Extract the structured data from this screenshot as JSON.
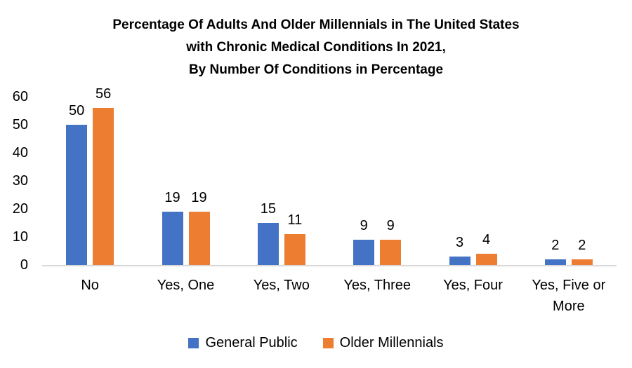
{
  "chart_data": {
    "type": "bar",
    "title": "Percentage Of Adults And Older Millennials in The United States\nwith Chronic Medical Conditions In 2021,\nBy Number Of Conditions in Percentage",
    "categories": [
      "No",
      "Yes, One",
      "Yes, Two",
      "Yes, Three",
      "Yes, Four",
      "Yes, Five or More"
    ],
    "series": [
      {
        "name": "General Public",
        "color": "#4472C4",
        "values": [
          50,
          19,
          15,
          9,
          3,
          2
        ]
      },
      {
        "name": "Older Millennials",
        "color": "#ED7D31",
        "values": [
          56,
          19,
          11,
          9,
          4,
          2
        ]
      }
    ],
    "yticks": [
      0,
      10,
      20,
      30,
      40,
      50,
      60
    ],
    "ylim": [
      0,
      60
    ],
    "xlabel": "",
    "ylabel": "",
    "grid": false,
    "data_labels": true,
    "legend_position": "bottom",
    "text_color": "#000000",
    "axis_line_color": "#D9D9D9",
    "background_color": "#FFFFFF"
  }
}
